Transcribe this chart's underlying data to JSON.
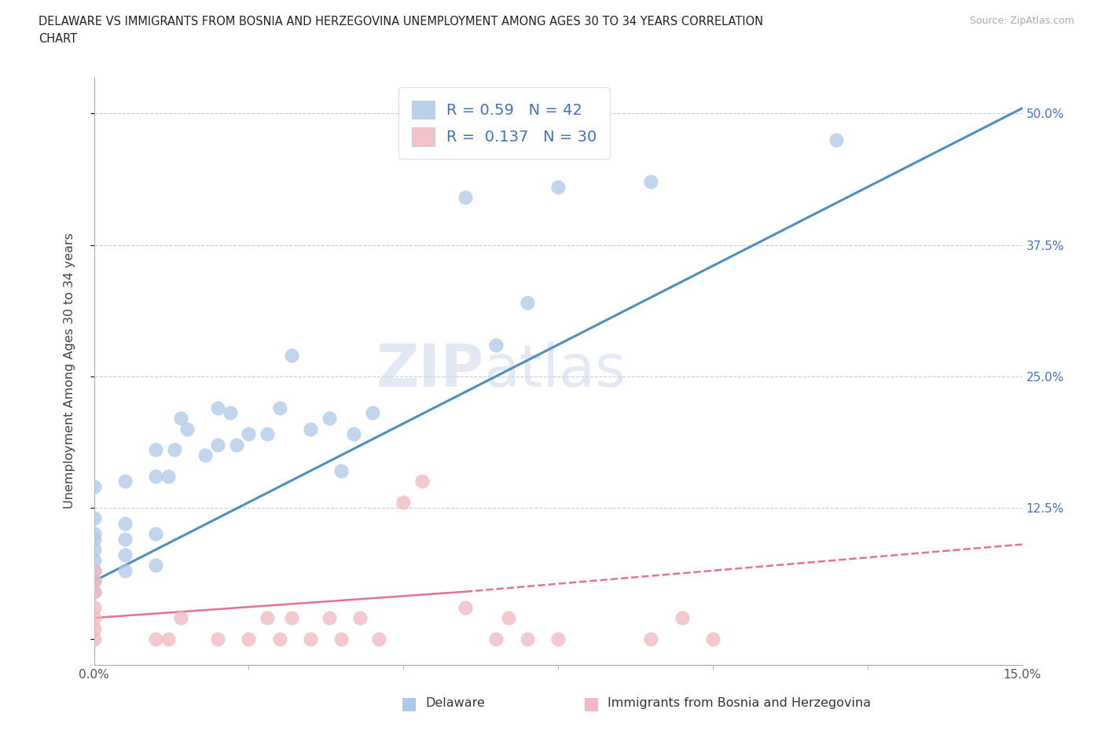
{
  "title_line1": "DELAWARE VS IMMIGRANTS FROM BOSNIA AND HERZEGOVINA UNEMPLOYMENT AMONG AGES 30 TO 34 YEARS CORRELATION",
  "title_line2": "CHART",
  "source": "Source: ZipAtlas.com",
  "ylabel": "Unemployment Among Ages 30 to 34 years",
  "xlim": [
    0.0,
    0.15
  ],
  "ylim": [
    -0.025,
    0.535
  ],
  "delaware_R": 0.59,
  "delaware_N": 42,
  "bosnia_R": 0.137,
  "bosnia_N": 30,
  "delaware_color": "#adc8e8",
  "bosnia_color": "#f0b8c0",
  "delaware_line_color": "#4f8fc0",
  "bosnia_line_color": "#e87090",
  "background_color": "#ffffff",
  "delaware_x": [
    0.0,
    0.0,
    0.0,
    0.0,
    0.0,
    0.0,
    0.0,
    0.0,
    0.0,
    0.005,
    0.005,
    0.005,
    0.005,
    0.005,
    0.01,
    0.01,
    0.01,
    0.01,
    0.012,
    0.013,
    0.014,
    0.015,
    0.018,
    0.02,
    0.02,
    0.022,
    0.023,
    0.025,
    0.028,
    0.03,
    0.032,
    0.035,
    0.038,
    0.04,
    0.042,
    0.045,
    0.06,
    0.065,
    0.07,
    0.075,
    0.09,
    0.12
  ],
  "delaware_y": [
    0.045,
    0.055,
    0.065,
    0.075,
    0.085,
    0.095,
    0.1,
    0.115,
    0.145,
    0.065,
    0.08,
    0.095,
    0.11,
    0.15,
    0.07,
    0.1,
    0.155,
    0.18,
    0.155,
    0.18,
    0.21,
    0.2,
    0.175,
    0.185,
    0.22,
    0.215,
    0.185,
    0.195,
    0.195,
    0.22,
    0.27,
    0.2,
    0.21,
    0.16,
    0.195,
    0.215,
    0.42,
    0.28,
    0.32,
    0.43,
    0.435,
    0.475
  ],
  "bosnia_x": [
    0.0,
    0.0,
    0.0,
    0.0,
    0.0,
    0.0,
    0.0,
    0.01,
    0.012,
    0.014,
    0.02,
    0.025,
    0.028,
    0.03,
    0.032,
    0.035,
    0.038,
    0.04,
    0.043,
    0.046,
    0.05,
    0.053,
    0.06,
    0.065,
    0.067,
    0.07,
    0.075,
    0.09,
    0.095,
    0.1
  ],
  "bosnia_y": [
    0.0,
    0.01,
    0.02,
    0.03,
    0.045,
    0.055,
    0.065,
    0.0,
    0.0,
    0.02,
    0.0,
    0.0,
    0.02,
    0.0,
    0.02,
    0.0,
    0.02,
    0.0,
    0.02,
    0.0,
    0.13,
    0.15,
    0.03,
    0.0,
    0.02,
    0.0,
    0.0,
    0.0,
    0.02,
    0.0
  ],
  "delaware_line_x": [
    0.0,
    0.15
  ],
  "delaware_line_y": [
    0.055,
    0.505
  ],
  "bosnia_solid_line_x": [
    0.0,
    0.06
  ],
  "bosnia_solid_line_y": [
    0.02,
    0.045
  ],
  "bosnia_dash_line_x": [
    0.06,
    0.15
  ],
  "bosnia_dash_line_y": [
    0.045,
    0.09
  ],
  "ytick_vals": [
    0.0,
    0.125,
    0.25,
    0.375,
    0.5
  ],
  "ytick_labels_right": [
    "",
    "12.5%",
    "25.0%",
    "37.5%",
    "50.0%"
  ],
  "xtick_vals": [
    0.0,
    0.15
  ],
  "xtick_labels": [
    "0.0%",
    "15.0%"
  ]
}
